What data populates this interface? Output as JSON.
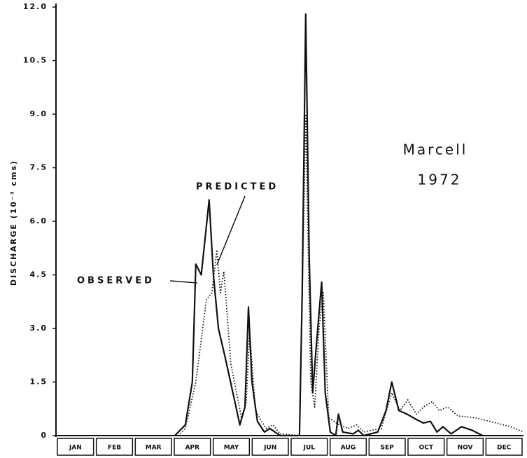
{
  "chart_data": {
    "type": "line",
    "title": "Marcell",
    "subtitle": "1972",
    "y_label": "DISCHARGE (10⁻³ cms)",
    "annotations": [
      "OBSERVED",
      "PREDICTED"
    ],
    "categories": [
      "JAN",
      "FEB",
      "MAR",
      "APR",
      "MAY",
      "JUN",
      "JUL",
      "AUG",
      "SEP",
      "OCT",
      "NOV",
      "DEC"
    ],
    "xlim": [
      0,
      12
    ],
    "ylim": [
      0,
      12
    ],
    "yticks": [
      0,
      1.5,
      {
        "value": 3,
        "label": "3.0"
      },
      4.5,
      {
        "value": 6,
        "label": "6.0"
      },
      7.5,
      {
        "value": 9,
        "label": "9.0"
      },
      10.5,
      {
        "value": 12,
        "label": "12.0"
      }
    ],
    "series": [
      {
        "name": "OBSERVED",
        "color": "#111111",
        "line_style": "solid",
        "x": [
          3.05,
          3.32,
          3.5,
          3.59,
          3.73,
          3.93,
          4.04,
          4.17,
          4.34,
          4.58,
          4.72,
          4.85,
          4.94,
          5.03,
          5.17,
          5.35,
          5.49,
          5.62,
          5.75,
          6.25,
          6.32,
          6.41,
          6.5,
          6.59,
          6.68,
          6.82,
          6.91,
          7.04,
          7.18,
          7.25,
          7.36,
          7.63,
          7.76,
          7.9,
          8.26,
          8.47,
          8.62,
          8.8,
          9.01,
          9.25,
          9.43,
          9.61,
          9.78,
          9.93,
          10.14,
          10.41,
          10.68,
          10.95
        ],
        "values": [
          0,
          0.3,
          1.5,
          4.8,
          4.5,
          6.6,
          4.5,
          3.0,
          2.2,
          1.0,
          0.3,
          0.8,
          3.6,
          1.5,
          0.4,
          0.1,
          0.2,
          0.1,
          0,
          0,
          4.0,
          11.8,
          5.0,
          1.2,
          2.5,
          4.3,
          1.2,
          0.1,
          0,
          0.6,
          0.1,
          0.05,
          0.15,
          0,
          0.1,
          0.7,
          1.5,
          0.7,
          0.6,
          0.45,
          0.35,
          0.4,
          0.1,
          0.25,
          0.05,
          0.25,
          0.15,
          0
        ]
      },
      {
        "name": "PREDICTED",
        "color": "#111111",
        "line_style": "dotted",
        "x": [
          3.14,
          3.32,
          3.59,
          3.86,
          4.0,
          4.13,
          4.22,
          4.31,
          4.49,
          4.76,
          4.88,
          4.97,
          5.12,
          5.39,
          5.57,
          5.75,
          6.25,
          6.41,
          6.54,
          6.64,
          6.75,
          6.86,
          7.0,
          7.27,
          7.5,
          7.72,
          7.9,
          8.35,
          8.62,
          8.83,
          9.03,
          9.25,
          9.43,
          9.66,
          9.84,
          10.05,
          10.32,
          10.77,
          11.13,
          11.67,
          12.0
        ],
        "values": [
          0,
          0.2,
          1.5,
          3.8,
          4.0,
          5.2,
          4.0,
          4.6,
          2.0,
          0.5,
          0.9,
          2.9,
          0.7,
          0.2,
          0.3,
          0.05,
          0,
          9.0,
          1.5,
          0.8,
          3.0,
          4.0,
          0.5,
          0.3,
          0.2,
          0.3,
          0.1,
          0.2,
          1.2,
          0.7,
          1.0,
          0.6,
          0.8,
          0.95,
          0.7,
          0.8,
          0.55,
          0.5,
          0.4,
          0.25,
          0.1
        ]
      }
    ]
  }
}
